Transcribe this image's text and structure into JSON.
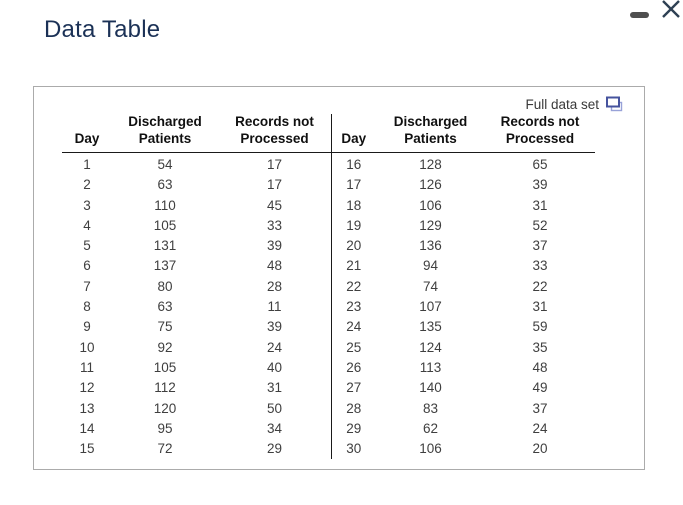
{
  "window": {
    "title": "Data Table"
  },
  "icons": {
    "minimize": "minimize-icon",
    "close": "close-icon",
    "full_data_set": "copy-icon"
  },
  "colors": {
    "title_navy": "#1b3156",
    "close_x": "#2e4053",
    "minimize_dash": "#4f4f4f",
    "panel_border": "#ababab",
    "table_rule": "#1a1a1a",
    "data_text": "#3f3f3f",
    "copy_icon_front": "#46539e",
    "copy_icon_back": "#98a2d8"
  },
  "table": {
    "full_data_set_label": "Full data set",
    "headers": {
      "day": "Day",
      "col2_line1": "Discharged",
      "col2_line2": "Patients",
      "col3_line1": "Records not",
      "col3_line2": "Processed"
    },
    "left_rows": [
      [
        1,
        54,
        17
      ],
      [
        2,
        63,
        17
      ],
      [
        3,
        110,
        45
      ],
      [
        4,
        105,
        33
      ],
      [
        5,
        131,
        39
      ],
      [
        6,
        137,
        48
      ],
      [
        7,
        80,
        28
      ],
      [
        8,
        63,
        11
      ],
      [
        9,
        75,
        39
      ],
      [
        10,
        92,
        24
      ],
      [
        11,
        105,
        40
      ],
      [
        12,
        112,
        31
      ],
      [
        13,
        120,
        50
      ],
      [
        14,
        95,
        34
      ],
      [
        15,
        72,
        29
      ]
    ],
    "right_rows": [
      [
        16,
        128,
        65
      ],
      [
        17,
        126,
        39
      ],
      [
        18,
        106,
        31
      ],
      [
        19,
        129,
        52
      ],
      [
        20,
        136,
        37
      ],
      [
        21,
        94,
        33
      ],
      [
        22,
        74,
        22
      ],
      [
        23,
        107,
        31
      ],
      [
        24,
        135,
        59
      ],
      [
        25,
        124,
        35
      ],
      [
        26,
        113,
        48
      ],
      [
        27,
        140,
        49
      ],
      [
        28,
        83,
        37
      ],
      [
        29,
        62,
        24
      ],
      [
        30,
        106,
        20
      ]
    ]
  }
}
